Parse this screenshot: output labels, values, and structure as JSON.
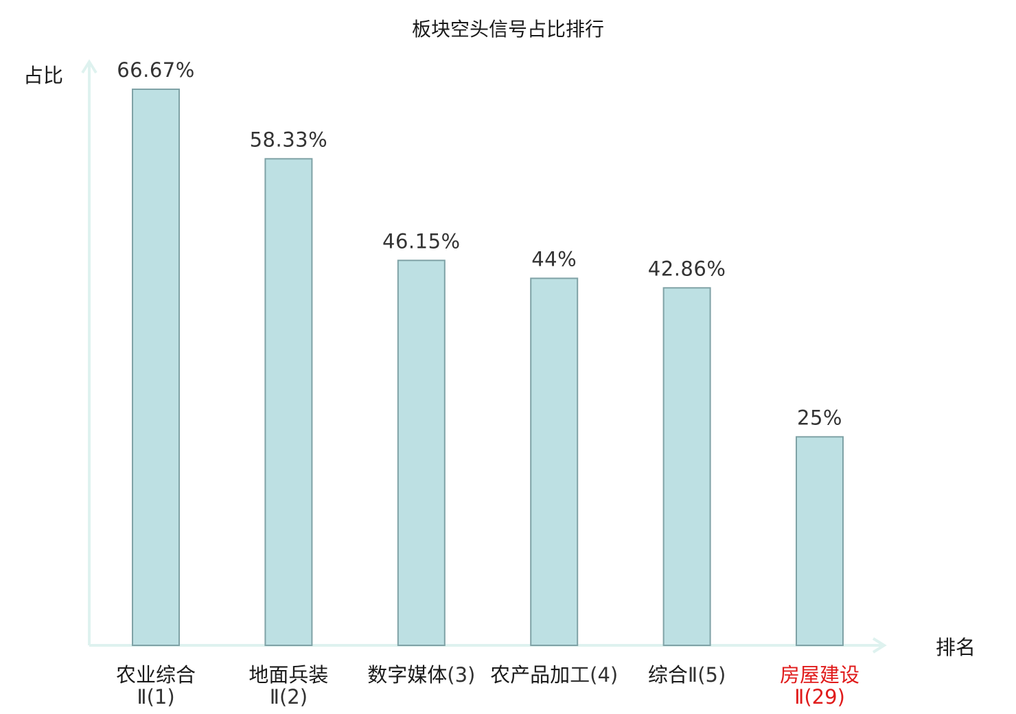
{
  "chart_data": {
    "type": "bar",
    "title": "板块空头信号占比排行",
    "ylabel": "占比",
    "xlabel": "排名",
    "ylim": [
      0,
      100
    ],
    "grid": false,
    "categories": [
      {
        "name": "农业综合",
        "rank": "Ⅱ(1)",
        "highlight": false
      },
      {
        "name": "地面兵装",
        "rank": "Ⅱ(2)",
        "highlight": false
      },
      {
        "name": "数字媒体",
        "rank": "(3)",
        "highlight": false
      },
      {
        "name": "农产品加",
        "rank": "工(4)",
        "highlight": false
      },
      {
        "name": "综合",
        "rank": "Ⅱ(5)",
        "highlight": false
      },
      {
        "name": "房屋建设",
        "rank": "Ⅱ(29)",
        "highlight": true
      }
    ],
    "values": [
      66.67,
      58.33,
      46.15,
      44,
      42.86,
      25
    ],
    "value_labels": [
      "66.67%",
      "58.33%",
      "46.15%",
      "44%",
      "42.86%",
      "25%"
    ]
  },
  "colors": {
    "bar_fill": "#bde0e3",
    "bar_stroke": "#7fa2a6",
    "axis": "#def2ef",
    "text": "#1a1a1a",
    "rank_text": "#333333",
    "highlight": "#e01b1b"
  }
}
